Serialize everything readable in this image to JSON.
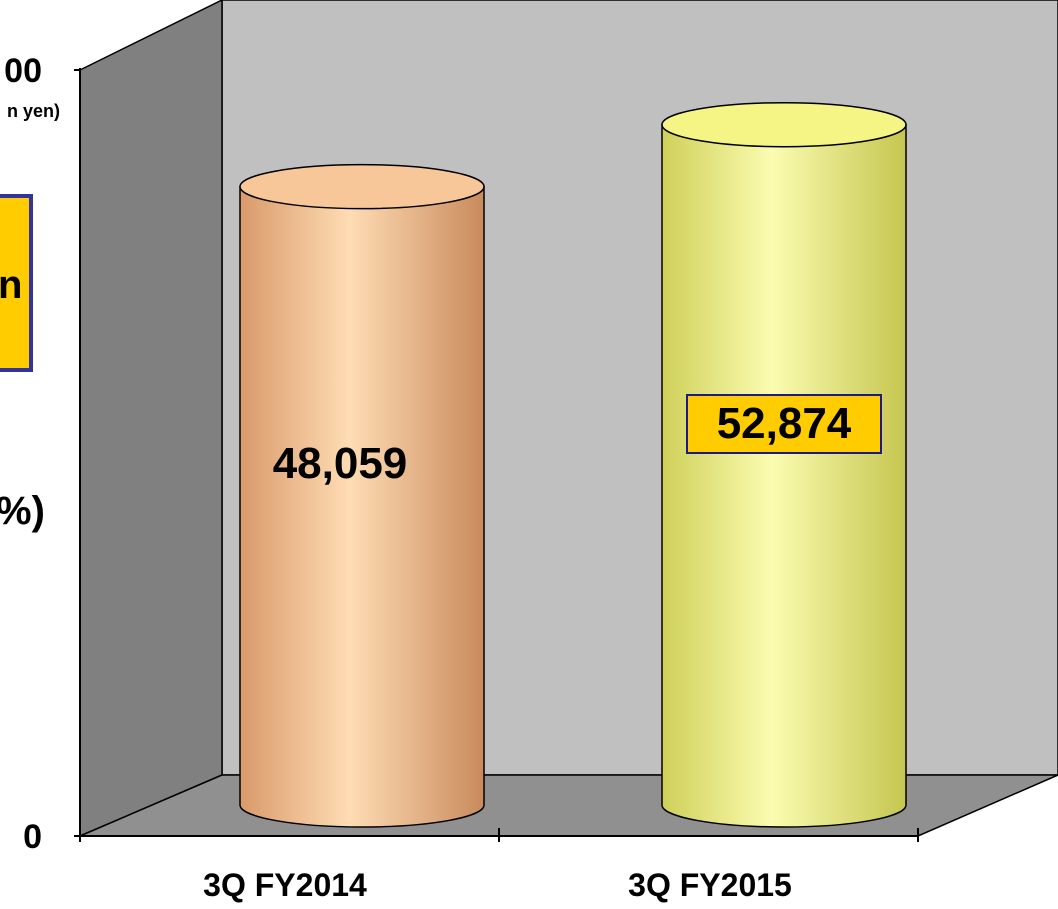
{
  "chart_data": {
    "type": "bar",
    "style": "3d-cylinder",
    "categories": [
      "3Q FY2014",
      "3Q FY2015"
    ],
    "values": [
      48059,
      52874
    ],
    "data_labels": [
      "48,059",
      "52,874"
    ],
    "ylim": [
      0,
      60000
    ],
    "y_tick_labels": [
      "0",
      "00"
    ],
    "y_unit_fragment": "n yen)",
    "left_fragments": [
      "n",
      "%)"
    ],
    "grid": false,
    "colors": {
      "bar_1": "#f7c79a",
      "bar_2": "#f4f585",
      "label_box_fill": "#ffcc00",
      "label_box_border": "#1a1a8c",
      "back_wall": "#c0c0c0",
      "side_wall": "#808080",
      "floor": "#909090",
      "callout_fill": "#ffcc00",
      "callout_border": "#333399"
    }
  }
}
